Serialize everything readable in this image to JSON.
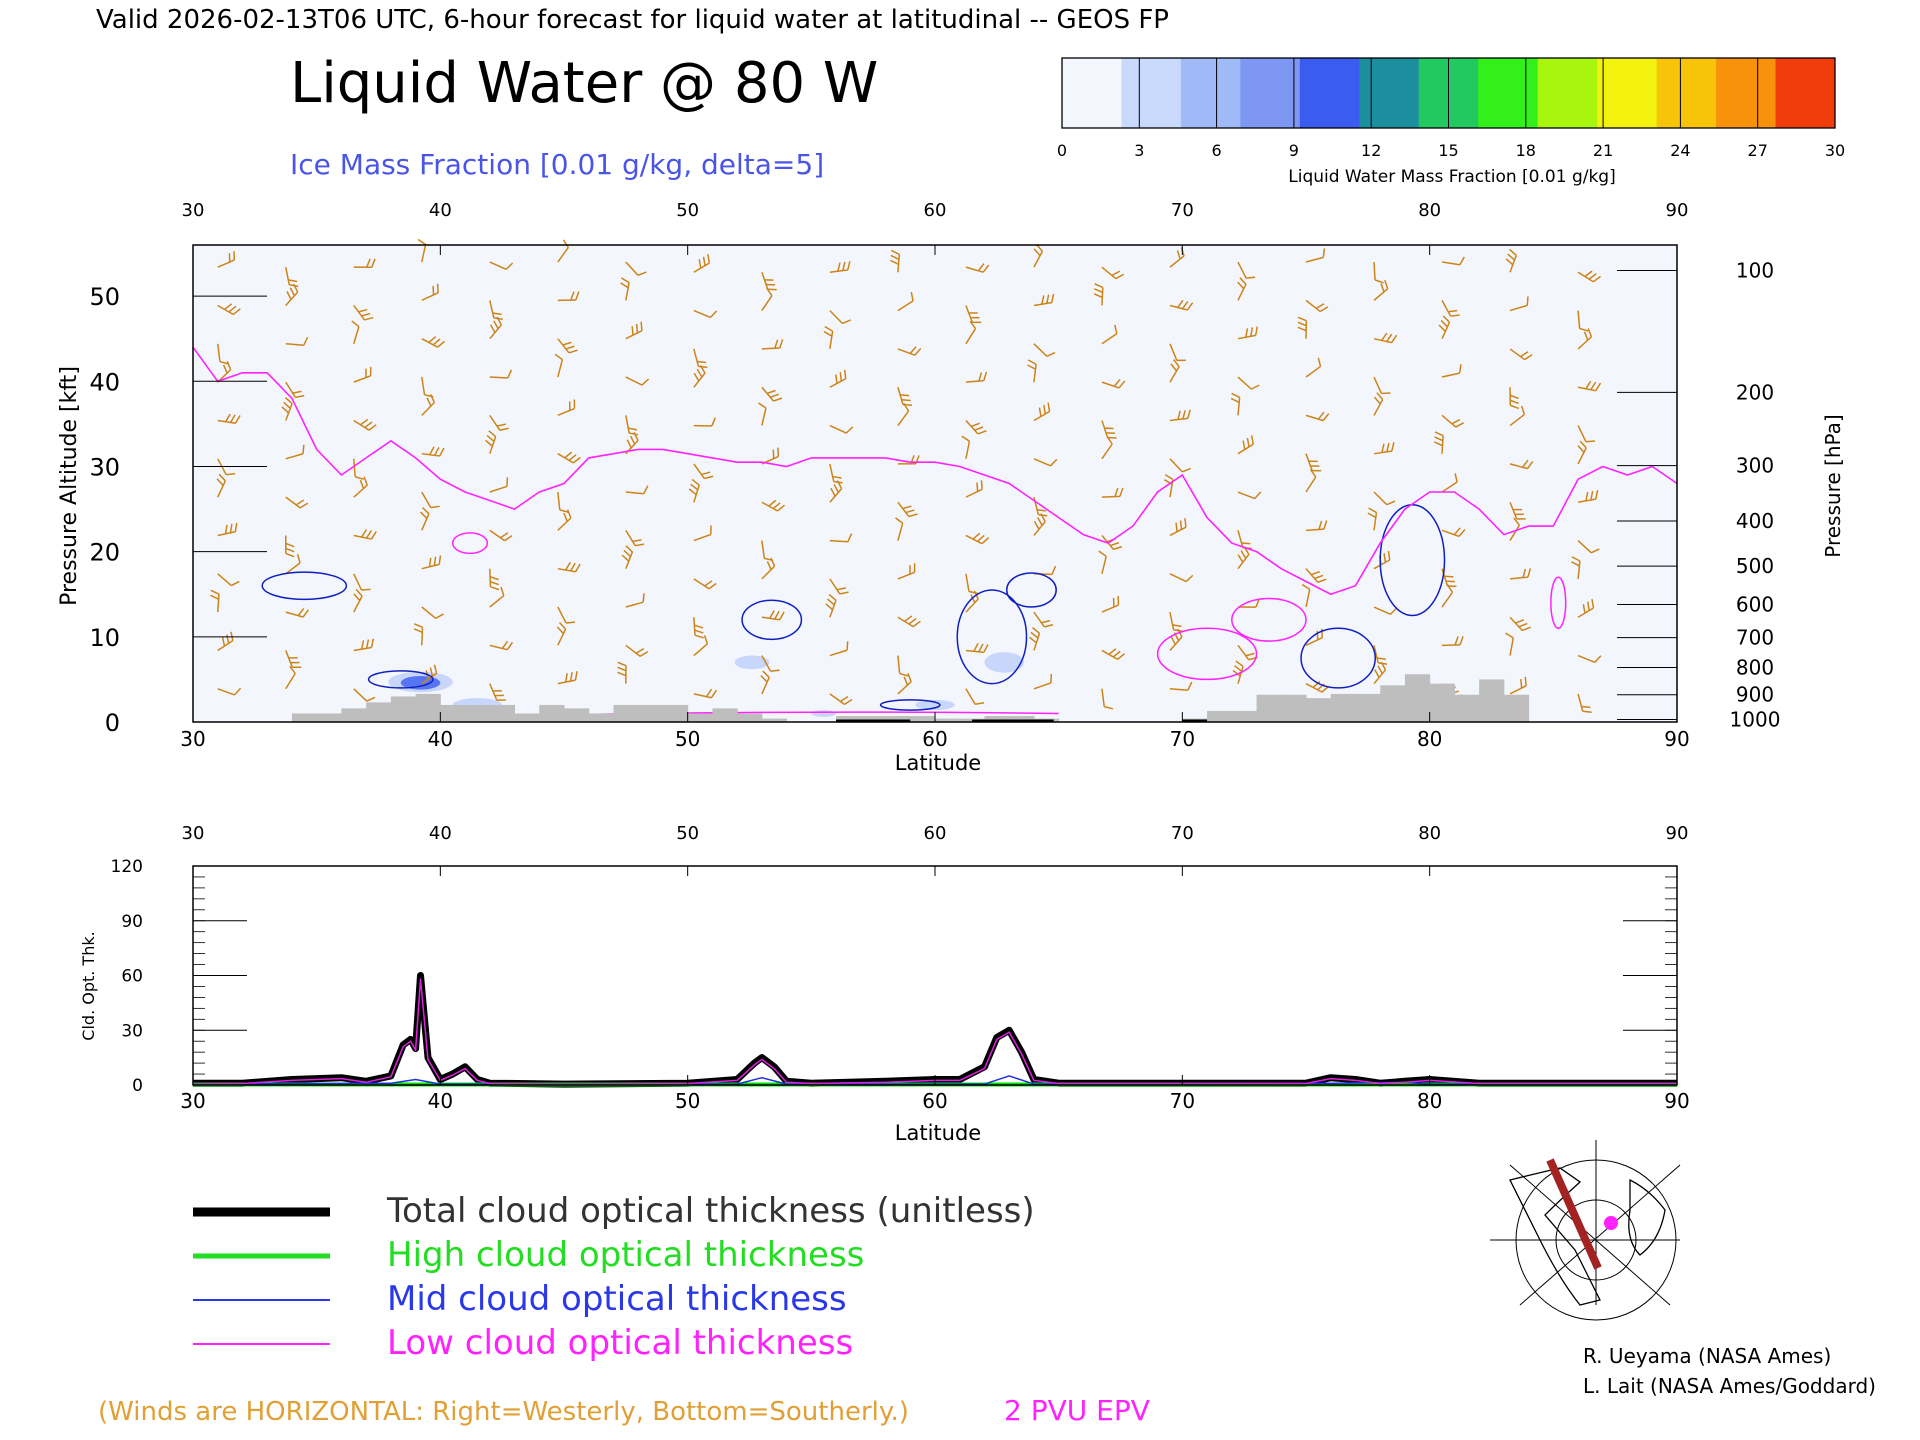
{
  "header": {
    "valid_line": "Valid 2026-02-13T06 UTC, 6-hour forecast for liquid water at latitudinal -- GEOS FP",
    "title": "Liquid Water @ 80 W",
    "subtitle": "Ice Mass Fraction [0.01 g/kg, delta=5]"
  },
  "colorbar": {
    "ticks": [
      "0",
      "3",
      "6",
      "9",
      "12",
      "15",
      "18",
      "21",
      "24",
      "27",
      "30"
    ],
    "label": "Liquid Water Mass Fraction [0.01 g/kg]",
    "colors": [
      "#f4f6fd",
      "#c9d9fb",
      "#9fbaf7",
      "#7d97f3",
      "#3a5df0",
      "#1c8f9f",
      "#22c95f",
      "#33f01a",
      "#a8f50e",
      "#f2f20c",
      "#f8c40a",
      "#f8920a",
      "#f03d0a"
    ]
  },
  "colors": {
    "wind_barbs": "#cc8418",
    "epv_contour": "#ff22ff",
    "ice_contour": "#1020c0",
    "terrain": "#bebebe",
    "subtitle": "#4a55e8"
  },
  "chart_data": [
    {
      "type": "line",
      "name": "cross-section",
      "xlabel": "Latitude",
      "ylabel": "Pressure Altitude [kft]",
      "ylabel_right": "Pressure [hPa]",
      "xlim": [
        30,
        90
      ],
      "ylim": [
        0,
        56
      ],
      "x_ticks": [
        "30",
        "40",
        "50",
        "60",
        "70",
        "80",
        "90"
      ],
      "y_ticks": [
        "0",
        "10",
        "20",
        "30",
        "40",
        "50"
      ],
      "pressure_ticks": [
        {
          "label": "100",
          "kft": 53
        },
        {
          "label": "200",
          "kft": 38.7
        },
        {
          "label": "300",
          "kft": 30.1
        },
        {
          "label": "400",
          "kft": 23.6
        },
        {
          "label": "500",
          "kft": 18.3
        },
        {
          "label": "600",
          "kft": 13.8
        },
        {
          "label": "700",
          "kft": 9.9
        },
        {
          "label": "800",
          "kft": 6.4
        },
        {
          "label": "900",
          "kft": 3.2
        },
        {
          "label": "1000",
          "kft": 0.3
        }
      ],
      "series": [
        {
          "kind": "epv_2pvu",
          "x": [
            30,
            31,
            32,
            33,
            34,
            35,
            36,
            37,
            38,
            39,
            40,
            41,
            42,
            43,
            44,
            45,
            46,
            47,
            48,
            49,
            50,
            51,
            52,
            53,
            54,
            55,
            56,
            57,
            58,
            59,
            60,
            61,
            62,
            63,
            64,
            65,
            66,
            67,
            68,
            69,
            70,
            71,
            72,
            73,
            74,
            75,
            76,
            77,
            78,
            79,
            80,
            81,
            82,
            83,
            84,
            85,
            86,
            87,
            88,
            89,
            90
          ],
          "y": [
            44,
            40,
            41,
            41,
            38,
            32,
            29,
            31,
            33,
            31,
            28.5,
            27,
            26,
            25,
            27,
            28,
            31,
            31.5,
            32,
            32,
            31.5,
            31,
            30.5,
            30.5,
            30,
            31,
            31,
            31,
            31,
            30.5,
            30.5,
            30,
            29,
            28,
            26,
            24,
            22,
            21,
            23,
            27,
            29,
            24,
            21,
            20,
            18,
            16.5,
            15,
            16,
            21,
            25,
            27,
            27,
            25,
            22,
            23,
            23,
            28.5,
            30,
            29,
            30,
            28
          ]
        }
      ],
      "terrain": {
        "x": [
          34,
          35,
          36,
          37,
          38,
          39,
          40,
          41,
          42,
          43,
          44,
          45,
          46,
          47,
          48,
          49,
          50,
          51,
          52,
          53,
          56,
          57,
          58,
          59,
          60,
          61,
          62,
          63,
          64,
          70,
          71,
          72,
          73,
          74,
          75,
          76,
          77,
          78,
          79,
          80,
          81,
          82,
          83
        ],
        "y": [
          1,
          1,
          1.6,
          2.3,
          3,
          3.3,
          2,
          2,
          2,
          1,
          2,
          1.6,
          1,
          2,
          2,
          2,
          1,
          1.6,
          1,
          0.4,
          0.7,
          0.7,
          0.7,
          0.7,
          0.4,
          0.4,
          0.7,
          0.7,
          0.4,
          0.4,
          1.3,
          1.3,
          3.2,
          3.2,
          2.8,
          3.3,
          3.3,
          4.3,
          5.6,
          4.5,
          3.2,
          5,
          3.2
        ]
      }
    },
    {
      "type": "line",
      "name": "optical-thickness",
      "xlabel": "Latitude",
      "ylabel": "Cld. Opt. Thk.",
      "xlim": [
        30,
        90
      ],
      "ylim": [
        0,
        120
      ],
      "x_ticks": [
        "30",
        "40",
        "50",
        "60",
        "70",
        "80",
        "90"
      ],
      "y_ticks": [
        "0",
        "30",
        "60",
        "90",
        "120"
      ],
      "series": [
        {
          "name": "Total cloud optical thickness (unitless)",
          "color": "#000000",
          "x": [
            30,
            32,
            34,
            36,
            37,
            38,
            38.5,
            38.8,
            39,
            39.2,
            39.5,
            40,
            40.5,
            41,
            41.5,
            42,
            45,
            50,
            52,
            52.7,
            53,
            53.5,
            54,
            55,
            58,
            60,
            61,
            62,
            62.5,
            63,
            63.5,
            64,
            65,
            70,
            75,
            76,
            77,
            78,
            79,
            80,
            82,
            85,
            88,
            90
          ],
          "y": [
            1,
            1,
            3,
            4,
            2,
            5,
            22,
            25,
            20,
            60,
            15,
            3,
            6,
            10,
            3,
            1,
            0.5,
            1,
            3,
            12,
            15,
            10,
            2,
            1,
            2,
            3,
            3,
            10,
            26,
            30,
            18,
            3,
            1,
            1,
            1,
            4,
            3,
            1,
            2,
            3,
            1,
            1,
            1,
            1
          ]
        },
        {
          "name": "High cloud optical thickness",
          "color": "#00dd00",
          "x": [
            30,
            90
          ],
          "y": [
            0.3,
            0.3
          ]
        },
        {
          "name": "Mid cloud optical thickness",
          "color": "#2030e0",
          "x": [
            30,
            38,
            39,
            40,
            52,
            53,
            54,
            62,
            63,
            64,
            76,
            79,
            80,
            90
          ],
          "y": [
            0.5,
            1,
            3,
            0.5,
            0.5,
            4,
            0.5,
            0.5,
            5,
            0.5,
            1,
            1.5,
            0.5,
            0.5
          ]
        },
        {
          "name": "Low cloud optical thickness",
          "color": "#e020e0",
          "x": [
            30,
            32,
            34,
            36,
            37,
            38,
            38.5,
            38.8,
            39,
            39.2,
            39.5,
            40,
            40.5,
            41,
            41.5,
            42,
            45,
            50,
            52,
            52.7,
            53,
            53.5,
            54,
            55,
            58,
            60,
            61,
            62,
            62.5,
            63,
            63.5,
            64,
            65,
            70,
            75,
            76,
            77,
            78,
            79,
            80,
            82,
            85,
            88,
            90
          ],
          "y": [
            0.5,
            0.8,
            2.5,
            3.5,
            1.5,
            4.5,
            21,
            24,
            19,
            58,
            14,
            2.5,
            5.5,
            9,
            2.5,
            0.8,
            0.4,
            0.8,
            2.5,
            11,
            14,
            9,
            1.5,
            0.8,
            1.5,
            2.5,
            2.5,
            9,
            25,
            29,
            17,
            2.5,
            0.8,
            0.8,
            0.8,
            3.5,
            2.5,
            0.8,
            1.5,
            2.5,
            0.8,
            0.8,
            0.8,
            0.8
          ]
        }
      ]
    }
  ],
  "legend": {
    "items": [
      {
        "label": "Total cloud optical thickness (unitless)",
        "color": "#000000"
      },
      {
        "label": "High cloud optical thickness",
        "color": "#22dd22"
      },
      {
        "label": "Mid cloud optical thickness",
        "color": "#2a38e8"
      },
      {
        "label": "Low cloud optical thickness",
        "color": "#ff22ff"
      }
    ]
  },
  "footer": {
    "winds_note": "(Winds are HORIZONTAL: Right=Westerly, Bottom=Southerly.)",
    "pvu_note": "2 PVU EPV",
    "credit_1": "R. Ueyama (NASA Ames)",
    "credit_2": "L. Lait (NASA Ames/Goddard)"
  }
}
